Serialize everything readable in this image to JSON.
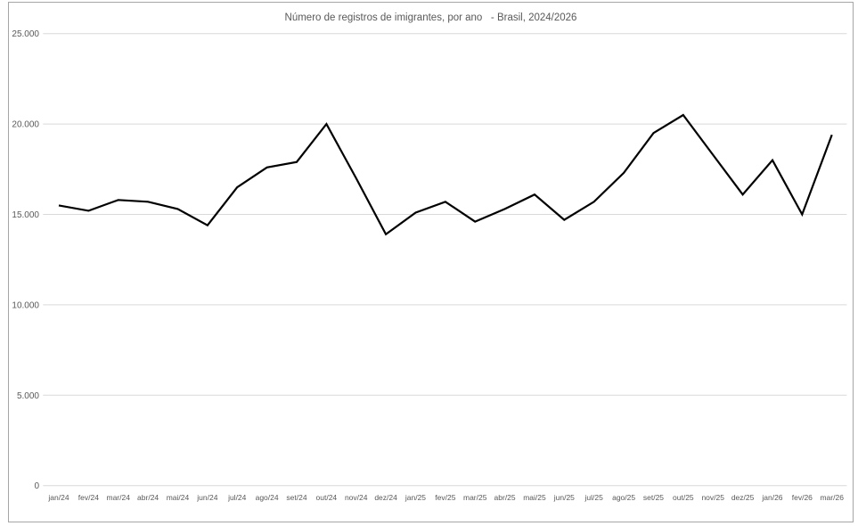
{
  "chart_data": {
    "type": "line",
    "title": "Número de registros de imigrantes, por ano   - Brasil, 2024/2026",
    "categories": [
      "jan/24",
      "fev/24",
      "mar/24",
      "abr/24",
      "mai/24",
      "jun/24",
      "jul/24",
      "ago/24",
      "set/24",
      "out/24",
      "nov/24",
      "dez/24",
      "jan/25",
      "fev/25",
      "mar/25",
      "abr/25",
      "mai/25",
      "jun/25",
      "jul/25",
      "ago/25",
      "set/25",
      "out/25",
      "nov/25",
      "dez/25",
      "jan/26",
      "fev/26",
      "mar/26"
    ],
    "values": [
      15500,
      15200,
      15800,
      15700,
      15300,
      14400,
      16500,
      17600,
      17900,
      20000,
      17000,
      13900,
      15100,
      15700,
      14600,
      15300,
      16100,
      14700,
      15700,
      17300,
      19500,
      20500,
      18300,
      16100,
      18000,
      15000,
      19400
    ],
    "y_ticks": [
      "25.000",
      "20.000",
      "15.000",
      "10.000",
      "5.000",
      "0"
    ],
    "y_tick_values": [
      25000,
      20000,
      15000,
      10000,
      5000,
      0
    ],
    "ylim": [
      0,
      25000
    ],
    "xlabel": "",
    "ylabel": "",
    "legend": "none",
    "grid": "horizontal",
    "line_color": "#000000",
    "grid_color": "#d9d9d9",
    "text_color": "#595959",
    "frame_color": "#a6a6a6",
    "background": "#ffffff"
  }
}
